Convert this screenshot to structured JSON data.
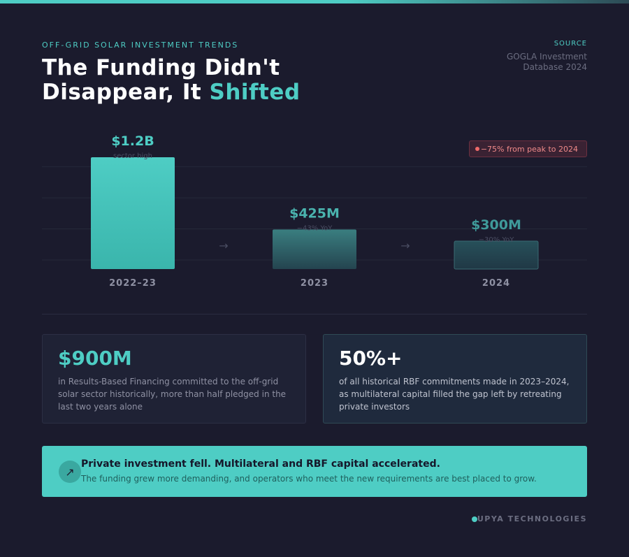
{
  "header": {
    "eyebrow": "OFF-GRID SOLAR INVESTMENT TRENDS",
    "title_line1": "The Funding Didn't",
    "title_line2": "Disappear, It ",
    "title_accent": "Shifted",
    "source_label": "SOURCE",
    "source_text": "GOGLA Investment Database 2024"
  },
  "badge": {
    "text": "−75% from peak to 2024",
    "color": "#f06a6a"
  },
  "chart_data": {
    "type": "bar",
    "title": "The Funding Didn't Disappear, It Shifted",
    "categories": [
      "2022–23",
      "2023",
      "2024"
    ],
    "values": [
      1200,
      425,
      300
    ],
    "unit": "USD millions",
    "value_labels": [
      "$1.2B",
      "$425M",
      "$300M"
    ],
    "sub_labels": [
      "sector high",
      "−43% YoY",
      "−30% YoY"
    ],
    "ylim": [
      0,
      1350
    ],
    "grid": true,
    "xlabel": "",
    "ylabel": "",
    "arrows": [
      "→",
      "→"
    ],
    "colors": [
      "#4ecdc4",
      "#3a8a8a",
      "#2a4a55"
    ]
  },
  "stats": [
    {
      "value": "$900M",
      "text": "in Results-Based Financing committed to the off-grid solar sector historically, more than half pledged in the last two years alone"
    },
    {
      "value": "50%+",
      "text": "of all historical RBF commitments made in 2023–2024, as multilateral capital filled the gap left by retreating private investors"
    }
  ],
  "banner": {
    "icon": "↗",
    "headline": "Private investment fell. Multilateral and RBF capital accelerated.",
    "sub": "The funding grew more demanding, and operators who meet the new requirements are best placed to grow."
  },
  "footer": {
    "brand": "UPYA TECHNOLOGIES"
  },
  "colors": {
    "accent": "#4ecdc4",
    "background": "#1b1b2d",
    "negative": "#f06a6a"
  }
}
